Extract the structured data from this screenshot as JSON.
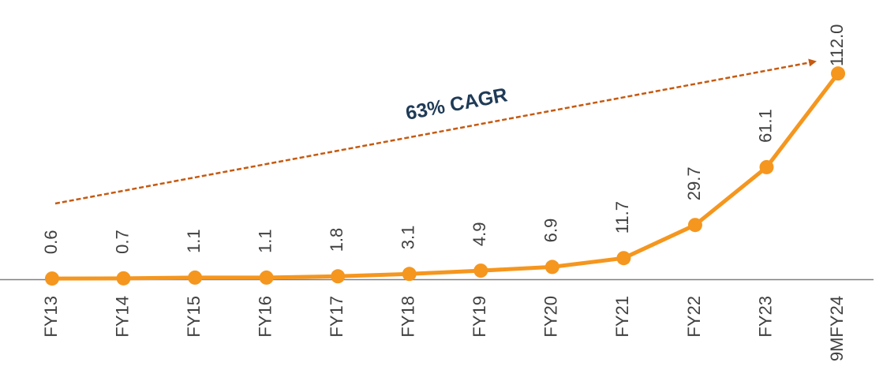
{
  "chart_data": {
    "type": "line",
    "categories": [
      "FY13",
      "FY14",
      "FY15",
      "FY16",
      "FY17",
      "FY18",
      "FY19",
      "FY20",
      "FY21",
      "FY22",
      "FY23",
      "9MFY24"
    ],
    "series": [
      {
        "color": "#f5961e",
        "values": [
          0.6,
          0.7,
          1.1,
          1.1,
          1.8,
          3.1,
          4.9,
          6.9,
          11.7,
          29.7,
          61.1,
          112.0
        ],
        "value_labels": [
          "0.6",
          "0.7",
          "1.1",
          "1.1",
          "1.8",
          "3.1",
          "4.9",
          "6.9",
          "11.7",
          "29.7",
          "61.1",
          "112.0"
        ]
      }
    ],
    "ylim": [
      0,
      120
    ],
    "annotation": "63% CAGR"
  }
}
